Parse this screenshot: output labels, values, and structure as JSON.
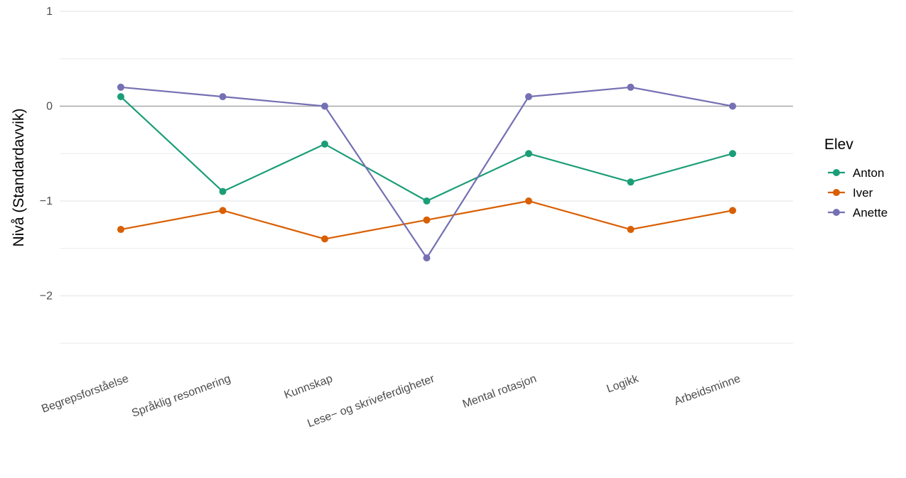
{
  "chart_data": {
    "type": "line",
    "title": "",
    "xlabel": "",
    "ylabel": "Nivå (Standardavvik)",
    "categories": [
      "Begrepsforståelse",
      "Språklig resonnering",
      "Kunnskap",
      "Lese− og skriveferdigheter",
      "Mental rotasjon",
      "Logikk",
      "Arbeidsminne"
    ],
    "ylim": [
      -2.5,
      1.0
    ],
    "y_ticks": [
      1,
      0,
      -1,
      -2
    ],
    "y_tick_labels": [
      "1",
      "0",
      "−1",
      "−2"
    ],
    "grid": true,
    "zero_reference_line": true,
    "legend_title": "Elev",
    "legend_position": "right",
    "series": [
      {
        "name": "Anton",
        "color": "#1b9e77",
        "values": [
          0.1,
          -0.9,
          -0.4,
          -1.0,
          -0.5,
          -0.8,
          -0.5
        ]
      },
      {
        "name": "Iver",
        "color": "#d95f02",
        "values": [
          -1.3,
          -1.1,
          -1.4,
          -1.2,
          -1.0,
          -1.3,
          -1.1
        ]
      },
      {
        "name": "Anette",
        "color": "#7570b3",
        "values": [
          0.2,
          0.1,
          0.0,
          -1.6,
          0.1,
          0.2,
          0.0
        ]
      }
    ]
  }
}
